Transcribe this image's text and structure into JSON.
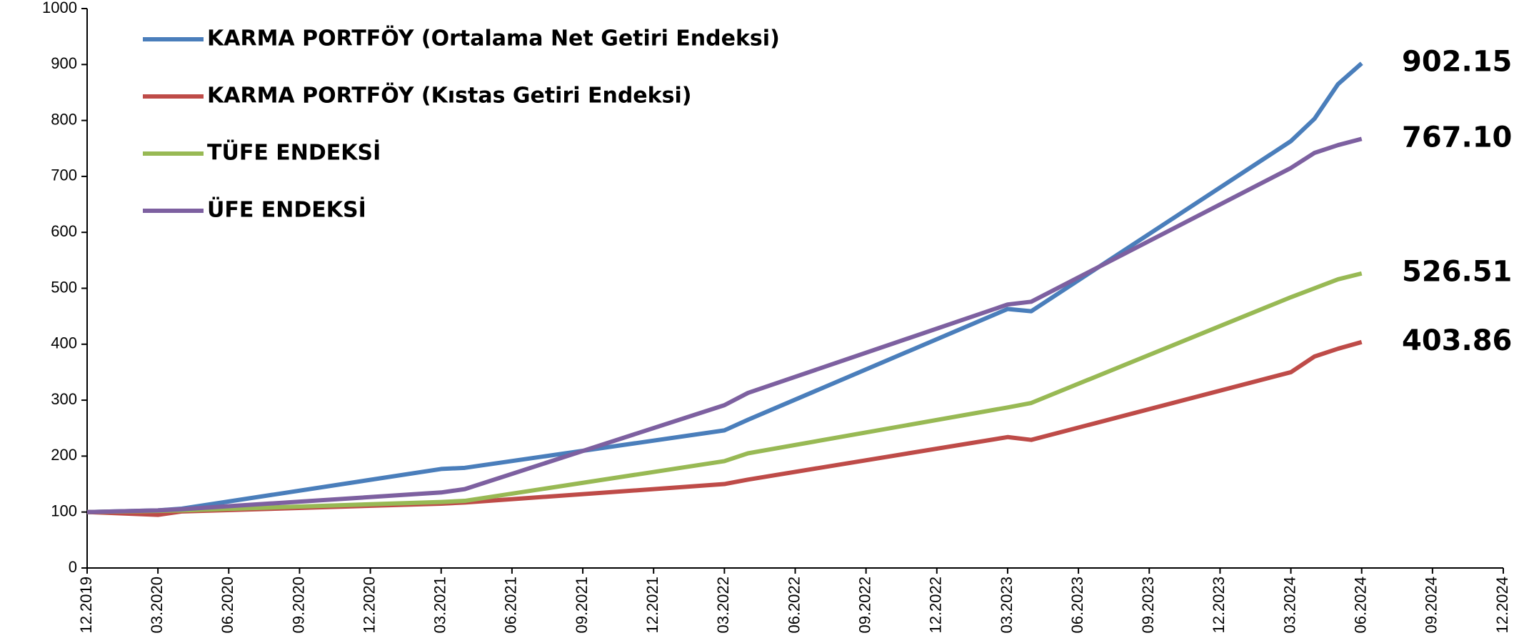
{
  "chart_data": {
    "type": "line",
    "x": [
      "12.2019",
      "03.2020",
      "04.2020",
      "03.2021",
      "04.2021",
      "03.2022",
      "04.2022",
      "03.2023",
      "04.2023",
      "03.2024",
      "04.2024",
      "05.2024",
      "06.2024"
    ],
    "series": [
      {
        "name": "KARMA PORTFÖY (Ortalama Net Getiri Endeksi)",
        "color": "#4a7ebb",
        "values": [
          100,
          103,
          106,
          177,
          179,
          246,
          265,
          463,
          459,
          763,
          803,
          865,
          902.15
        ],
        "value_labels": [
          null,
          null,
          null,
          null,
          null,
          null,
          null,
          null,
          null,
          null,
          null,
          null,
          "902.15"
        ]
      },
      {
        "name": "KARMA PORTFÖY (Kıstas Getiri Endeksi)",
        "color": "#be4b48",
        "values": [
          100,
          95,
          101,
          115,
          117,
          150,
          158,
          234,
          229,
          350,
          378,
          392,
          403.86
        ],
        "value_labels": [
          null,
          null,
          null,
          null,
          null,
          null,
          null,
          null,
          null,
          null,
          null,
          null,
          "403.86"
        ]
      },
      {
        "name": "TÜFE ENDEKSİ",
        "color": "#98b954",
        "values": [
          100,
          102,
          103,
          118,
          120,
          191,
          205,
          287,
          295,
          484,
          500,
          516,
          526.51
        ],
        "value_labels": [
          null,
          null,
          null,
          null,
          null,
          null,
          null,
          null,
          null,
          null,
          null,
          null,
          "526.51"
        ]
      },
      {
        "name": "ÜFE ENDEKSİ",
        "color": "#7d60a0",
        "values": [
          100,
          103,
          105,
          135,
          141,
          291,
          313,
          471,
          476,
          715,
          742,
          756,
          767.1
        ],
        "value_labels": [
          null,
          null,
          null,
          null,
          null,
          null,
          null,
          null,
          null,
          null,
          null,
          null,
          "767.10"
        ]
      }
    ],
    "xlim": [
      "12.2019",
      "12.2024"
    ],
    "xticks": [
      "12.2019",
      "03.2020",
      "06.2020",
      "09.2020",
      "12.2020",
      "03.2021",
      "06.2021",
      "09.2021",
      "12.2021",
      "03.2022",
      "06.2022",
      "09.2022",
      "12.2022",
      "03.2023",
      "06.2023",
      "09.2023",
      "12.2023",
      "03.2024",
      "06.2024",
      "09.2024",
      "12.2024"
    ],
    "ylim": [
      0,
      1000
    ],
    "yticks": [
      0,
      100,
      200,
      300,
      400,
      500,
      600,
      700,
      800,
      900,
      1000
    ],
    "grid": false,
    "legend": "upper left"
  }
}
